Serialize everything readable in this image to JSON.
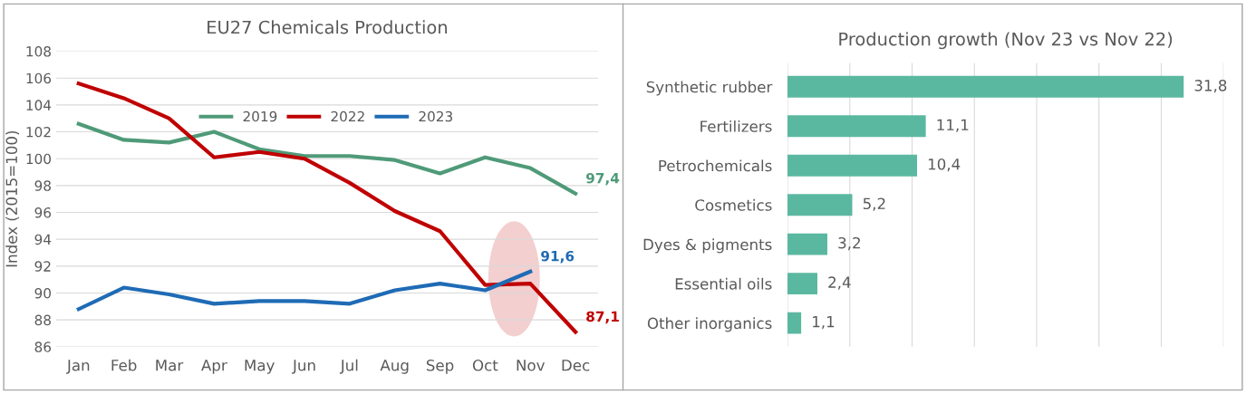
{
  "chart_data": [
    {
      "type": "line",
      "title": "EU27 Chemicals Production",
      "ylabel": "Index (2015=100)",
      "categories": [
        "Jan",
        "Feb",
        "Mar",
        "Apr",
        "May",
        "Jun",
        "Jul",
        "Aug",
        "Sep",
        "Oct",
        "Nov",
        "Dec"
      ],
      "series": [
        {
          "name": "2019",
          "color": "#4f9a78",
          "values": [
            102.6,
            101.4,
            101.2,
            102.0,
            100.7,
            100.2,
            100.2,
            99.9,
            98.9,
            100.1,
            99.3,
            97.4
          ],
          "value_labels": [
            null,
            null,
            null,
            null,
            null,
            null,
            null,
            null,
            null,
            null,
            null,
            "97,4"
          ]
        },
        {
          "name": "2022",
          "color": "#c00000",
          "values": [
            105.6,
            104.5,
            103.0,
            100.1,
            100.5,
            100.0,
            98.2,
            96.1,
            94.6,
            90.6,
            90.7,
            87.1
          ],
          "value_labels": [
            null,
            null,
            null,
            null,
            null,
            null,
            null,
            null,
            null,
            null,
            null,
            "87,1"
          ]
        },
        {
          "name": "2023",
          "color": "#1f6bb5",
          "values": [
            88.8,
            90.4,
            89.9,
            89.2,
            89.4,
            89.4,
            89.2,
            90.2,
            90.7,
            90.2,
            91.6,
            null
          ],
          "value_labels": [
            null,
            null,
            null,
            null,
            null,
            null,
            null,
            null,
            null,
            null,
            "91,6",
            null
          ]
        }
      ],
      "ylim": [
        86,
        108
      ],
      "yticks": [
        86,
        88,
        90,
        92,
        94,
        96,
        98,
        100,
        102,
        104,
        106,
        108
      ],
      "grid": "y",
      "legend": "top",
      "marker": "none",
      "line_style": "solid"
    },
    {
      "type": "bar",
      "orientation": "horizontal",
      "title": "Production growth (Nov 23 vs Nov 22)",
      "categories": [
        "Synthetic rubber",
        "Fertilizers",
        "Petrochemicals",
        "Cosmetics",
        "Dyes & pigments",
        "Essential oils",
        "Other inorganics"
      ],
      "values": [
        31.8,
        11.1,
        10.4,
        5.2,
        3.2,
        2.4,
        1.1
      ],
      "color": "#5bb8a0",
      "value_labels": [
        "31,8",
        "11,1",
        "10,4",
        "5,2",
        "3,2",
        "2,4",
        "1,1"
      ],
      "xlim": [
        0,
        35
      ],
      "xticks": [
        0,
        5,
        10,
        15,
        20,
        25,
        30,
        35
      ],
      "grid": "x",
      "tick_labels": "y"
    }
  ]
}
